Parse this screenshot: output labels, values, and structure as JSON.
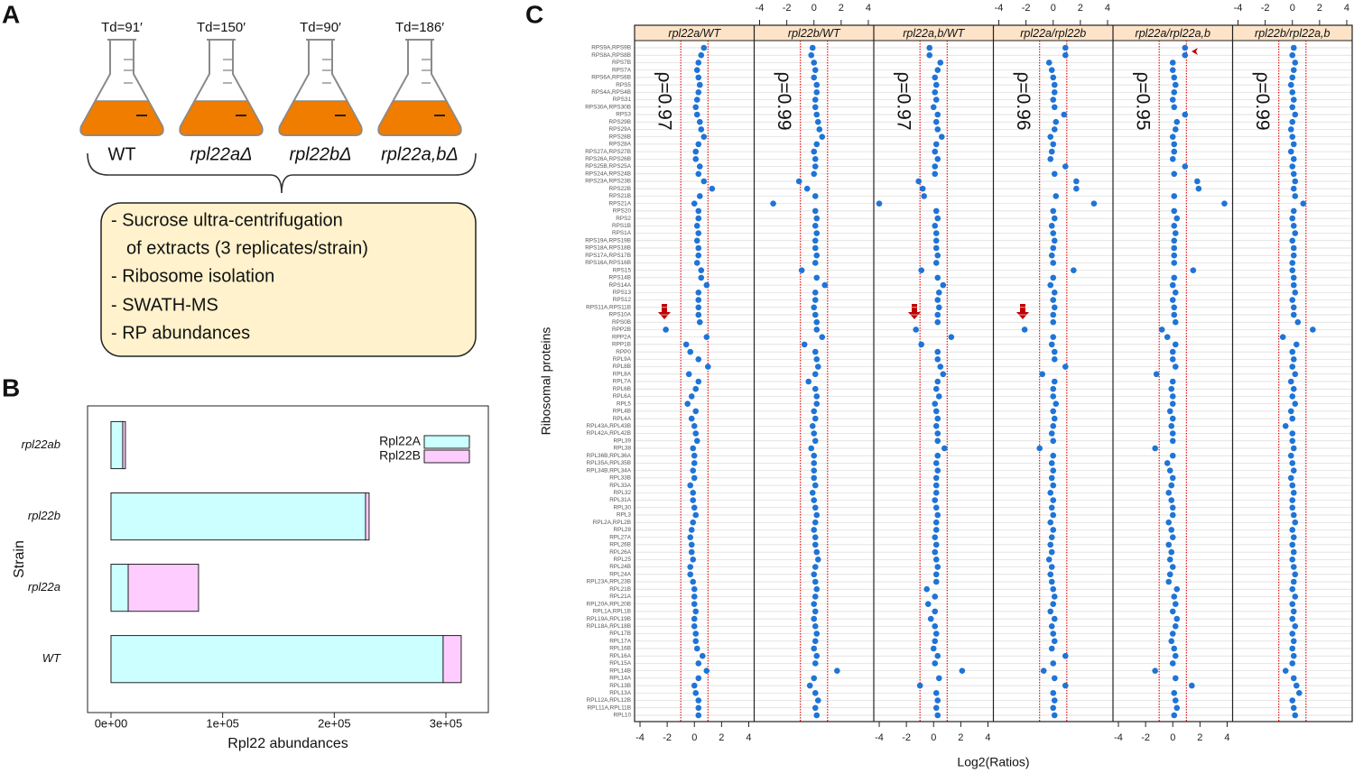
{
  "panel_labels": [
    "A",
    "B",
    "C"
  ],
  "panel_a": {
    "flasks": [
      {
        "td": "Td=91′",
        "strain": "WT"
      },
      {
        "td": "Td=150′",
        "strain": "rpl22aΔ"
      },
      {
        "td": "Td=90′",
        "strain": "rpl22bΔ"
      },
      {
        "td": "Td=186′",
        "strain": "rpl22a,bΔ"
      }
    ],
    "steps": [
      "- Sucrose ultra-centrifugation",
      "of extracts (3 replicates/strain)",
      "- Ribosome isolation",
      "- SWATH-MS",
      "- RP abundances"
    ]
  },
  "chart_data": [
    {
      "type": "bar",
      "orientation": "horizontal",
      "stacked": true,
      "categories": [
        "WT",
        "rpl22a",
        "rpl22b",
        "rpl22ab"
      ],
      "series": [
        {
          "name": "Rpl22A",
          "color": "#ccffff",
          "values": [
            297500,
            15400,
            228000,
            10500
          ]
        },
        {
          "name": "Rpl22B",
          "color": "#ffccff",
          "values": [
            16200,
            63000,
            3200,
            2400
          ]
        }
      ],
      "xlim": [
        -21000,
        338000
      ],
      "xticks": [
        {
          "value": 0,
          "label": "0e+00"
        },
        {
          "value": 100000,
          "label": "1e+05"
        },
        {
          "value": 200000,
          "label": "2e+05"
        },
        {
          "value": 300000,
          "label": "3e+05"
        }
      ],
      "xlabel": "Rpl22 abundances",
      "ylabel": "Strain",
      "legend": "top-right"
    },
    {
      "type": "dot",
      "categories": [
        "RPS9A,RPS9B",
        "RPS8A,RPS8B",
        "RPS7B",
        "RPS7A",
        "RPS6A,RPS6B",
        "RPS5",
        "RPS4A,RPS4B",
        "RPS31",
        "RPS30A,RPS30B",
        "RPS3",
        "RPS29B",
        "RPS29A",
        "RPS28B",
        "RPS28A",
        "RPS27A,RPS27B",
        "RPS26A,RPS26B",
        "RPS25B,RPS25A",
        "RPS24A,RPS24B",
        "RPS23A,RPS23B",
        "RPS22B",
        "RPS21B",
        "RPS21A",
        "RPS20",
        "RPS2",
        "RPS1B",
        "RPS1A",
        "RPS19A,RPS19B",
        "RPS18A,RPS18B",
        "RPS17A,RPS17B",
        "RPS16A,RPS16B",
        "RPS15",
        "RPS14B",
        "RPS14A",
        "RPS13",
        "RPS12",
        "RPS11A,RPS11B",
        "RPS10A",
        "RPS0B",
        "RPP2B",
        "RPP2A",
        "RPP1B",
        "RPP0",
        "RPL9A",
        "RPL8B",
        "RPL8A",
        "RPL7A",
        "RPL6B",
        "RPL6A",
        "RPL5",
        "RPL4B",
        "RPL4A",
        "RPL43A,RPL43B",
        "RPL42A,RPL42B",
        "RPL39",
        "RPL38",
        "RPL36B,RPL36A",
        "RPL35A,RPL35B",
        "RPL34B,RPL34A",
        "RPL33B",
        "RPL33A",
        "RPL32",
        "RPL31A",
        "RPL30",
        "RPL3",
        "RPL2A,RPL2B",
        "RPL28",
        "RPL27A",
        "RPL26B",
        "RPL26A",
        "RPL25",
        "RPL24B",
        "RPL24A",
        "RPL23A,RPL23B",
        "RPL21B",
        "RPL21A",
        "RPL20A,RPL20B",
        "RPL1A,RPL1B",
        "RPL19A,RPL19B",
        "RPL18A,RPL18B",
        "RPL17B",
        "RPL17A",
        "RPL16B",
        "RPL16A",
        "RPL15A",
        "RPL14B",
        "RPL14A",
        "RPL13B",
        "RPL13A",
        "RPL12A,RPL12B",
        "RPL11A,RPL11B",
        "RPL10"
      ],
      "series": [
        {
          "name": "rpl22a/WT",
          "color": "#1f74d6",
          "values": [
            0.7,
            0.5,
            0.3,
            0.2,
            0.3,
            0.4,
            0.3,
            0.2,
            0.1,
            0.2,
            0.4,
            0.5,
            0.7,
            0.3,
            0.1,
            0.1,
            0.4,
            0.3,
            0.7,
            1.3,
            0.4,
            0,
            0.3,
            0.3,
            0.2,
            0.3,
            0.2,
            0.3,
            0.3,
            0.2,
            0.5,
            0.5,
            0.9,
            0.3,
            0.3,
            0.3,
            0.3,
            0.4,
            -2.1,
            0.9,
            -0.6,
            -0.3,
            0.3,
            1.0,
            -0.4,
            0.3,
            0.1,
            -0.2,
            -0.5,
            0.1,
            -0.2,
            0,
            0.1,
            0.2,
            -0.1,
            0,
            0,
            -0.1,
            0,
            -0.3,
            -0.1,
            -0.1,
            0,
            0.1,
            -0.1,
            -0.2,
            -0.3,
            -0.2,
            -0.2,
            -0.1,
            -0.3,
            -0.3,
            -0.1,
            0,
            0,
            0,
            0.1,
            0,
            0,
            0.1,
            0.1,
            0.2,
            0.6,
            0.3,
            0.9,
            0.3,
            0,
            0.1,
            0.3,
            0.3,
            0.3
          ]
        },
        {
          "name": "rpl22b/WT",
          "color": "#1f74d6",
          "values": [
            -0.1,
            -0.2,
            0,
            0.1,
            0,
            0.2,
            0.2,
            0.1,
            0.1,
            0.2,
            0.3,
            0.4,
            0.6,
            0.2,
            0,
            0.1,
            0.1,
            0,
            -1.1,
            -0.5,
            0.1,
            -3.0,
            0.1,
            0.2,
            0.1,
            0.2,
            0.1,
            0.1,
            0.2,
            0.1,
            -0.9,
            0.2,
            0.8,
            0.1,
            0.1,
            0,
            0.1,
            0.2,
            0.2,
            0.6,
            -0.7,
            0.1,
            0.2,
            0.3,
            0.1,
            -0.4,
            0.1,
            0.2,
            0.2,
            0,
            0.1,
            -0.1,
            0,
            0.1,
            -0.2,
            0,
            0,
            0,
            0,
            0.1,
            -0.1,
            0,
            0.1,
            0.2,
            0.1,
            0,
            0.1,
            0.1,
            0.2,
            0.3,
            0.1,
            0,
            0.1,
            0.2,
            0.1,
            0,
            0.1,
            0,
            0.1,
            0.2,
            0.1,
            0,
            0.2,
            0.1,
            1.7,
            0,
            -0.3,
            0.1,
            0.3,
            0.1,
            0.2
          ]
        },
        {
          "name": "rpl22a,b/WT",
          "color": "#1f74d6",
          "values": [
            -0.3,
            -0.3,
            0.5,
            0.3,
            0.1,
            0.2,
            0.1,
            0.2,
            0,
            0.3,
            0.2,
            0.3,
            0.6,
            0.2,
            0.1,
            0.3,
            0.1,
            0.1,
            -1.1,
            -0.8,
            -0.7,
            -4.0,
            0.2,
            0.3,
            0.1,
            0.2,
            0.2,
            0.2,
            0.3,
            0.2,
            -0.9,
            0.3,
            0.7,
            0.4,
            0.3,
            0.4,
            0.3,
            0.3,
            -1.3,
            1.3,
            -0.9,
            0.3,
            0.3,
            0.5,
            0.7,
            0.3,
            0.2,
            0.4,
            0.1,
            0.2,
            0.3,
            0.2,
            0.3,
            0.3,
            0.8,
            0.3,
            0.2,
            0.3,
            0.2,
            0.2,
            0.2,
            0.1,
            0.2,
            0.3,
            0.2,
            0.2,
            0.1,
            0.2,
            0.1,
            0.2,
            0.3,
            0.2,
            0.2,
            -0.5,
            0.1,
            -0.4,
            0.1,
            -0.2,
            0.1,
            0.2,
            0.1,
            0,
            0.3,
            0.1,
            2.1,
            0.4,
            -1.0,
            0.2,
            0.3,
            0.2,
            0.3
          ]
        },
        {
          "name": "rpl22a/rpl22b",
          "color": "#1f74d6",
          "values": [
            0.9,
            0.9,
            -0.3,
            -0.1,
            0,
            0.1,
            0.1,
            0,
            0.1,
            0.8,
            0.2,
            0.1,
            -0.2,
            0,
            -0.1,
            -0.2,
            0.9,
            0.1,
            1.7,
            1.7,
            0.2,
            3.0,
            0,
            0.1,
            -0.1,
            0,
            0.1,
            0,
            -0.1,
            0,
            1.5,
            0,
            -0.2,
            0.1,
            0,
            0.1,
            0,
            0,
            -2.1,
            0,
            -0.1,
            0.1,
            0.1,
            0.9,
            -0.8,
            0.1,
            0,
            0,
            0.2,
            0,
            0.1,
            0,
            -0.1,
            0,
            -1.0,
            0,
            -0.1,
            0,
            -0.1,
            0,
            -0.2,
            0,
            -0.1,
            0,
            -0.2,
            0,
            -0.1,
            -0.2,
            -0.1,
            -0.3,
            -0.1,
            -0.2,
            -0.1,
            0,
            0.1,
            0,
            -0.2,
            0.1,
            -0.1,
            0,
            0.1,
            -0.1,
            0.9,
            0,
            -0.7,
            0.1,
            0.9,
            0,
            0.1,
            0,
            0.1
          ]
        },
        {
          "name": "rpl22a/rpl22a,b",
          "color": "#1f74d6",
          "values": [
            0.9,
            0.9,
            0,
            0,
            0.1,
            0.2,
            0.1,
            0,
            0.1,
            0.9,
            0.3,
            0.2,
            0,
            0.1,
            0.1,
            0,
            0.9,
            0.1,
            1.8,
            1.9,
            0.1,
            3.8,
            0.1,
            0.3,
            0.1,
            0.2,
            0.1,
            0.1,
            0.1,
            0.1,
            1.5,
            0.1,
            0,
            0.2,
            0,
            0.1,
            0.1,
            0.2,
            -0.8,
            -0.4,
            0.2,
            0,
            0,
            0.2,
            -1.2,
            0,
            -0.1,
            0,
            0,
            -0.2,
            0,
            -0.1,
            0,
            0,
            -1.3,
            0,
            -0.4,
            -0.2,
            0,
            -0.1,
            -0.3,
            -0.1,
            0,
            0,
            -0.3,
            -0.1,
            0,
            -0.3,
            -0.1,
            -0.2,
            0,
            -0.2,
            -0.3,
            0.3,
            0.1,
            0.2,
            0,
            0.3,
            0.2,
            0,
            -0.1,
            0.1,
            0.2,
            0,
            -1.3,
            0.2,
            1.4,
            0.1,
            0.2,
            0.3,
            0.1
          ]
        },
        {
          "name": "rpl22b/rpl22a,b",
          "color": "#1f74d6",
          "values": [
            0.1,
            0,
            0.2,
            0.1,
            0,
            -0.1,
            0,
            0.1,
            0,
            0.2,
            0,
            -0.1,
            0,
            0.1,
            -0.1,
            0.1,
            0,
            0.1,
            0.2,
            0.1,
            0.2,
            0.8,
            0.1,
            0,
            0.1,
            0.2,
            0,
            0.1,
            0.1,
            0,
            0,
            0.1,
            0.1,
            0.2,
            0,
            0.1,
            0.1,
            0.4,
            1.5,
            -0.7,
            0.3,
            0,
            0.1,
            0,
            0.2,
            -0.1,
            0.1,
            0,
            0.2,
            -0.1,
            0,
            -0.5,
            0,
            0,
            0.1,
            -0.1,
            0,
            0.1,
            -0.1,
            0,
            0.1,
            0,
            0,
            0.1,
            0.2,
            0,
            0.1,
            0,
            0.1,
            0,
            0.1,
            0.2,
            0.1,
            0,
            0.2,
            0,
            0.1,
            0,
            0.2,
            0,
            0.1,
            0,
            0.1,
            0,
            -0.5,
            0.1,
            0.3,
            0.5,
            0,
            0.1,
            0.2
          ]
        }
      ],
      "annotations": [
        "ρ=0.97",
        "ρ=0.99",
        "ρ=0.97",
        "ρ=0.96",
        "ρ=0.95",
        "ρ=0.99"
      ],
      "xlim": [
        -4.4,
        4.4
      ],
      "xticks": [
        -4,
        -2,
        0,
        2,
        4
      ],
      "reference_lines": [
        -1,
        1
      ],
      "reference_color": "#e00000",
      "strip_color": "#fde3c8",
      "xlabel": "Log2(Ratios)",
      "ylabel": "Ribosomal proteins"
    }
  ]
}
